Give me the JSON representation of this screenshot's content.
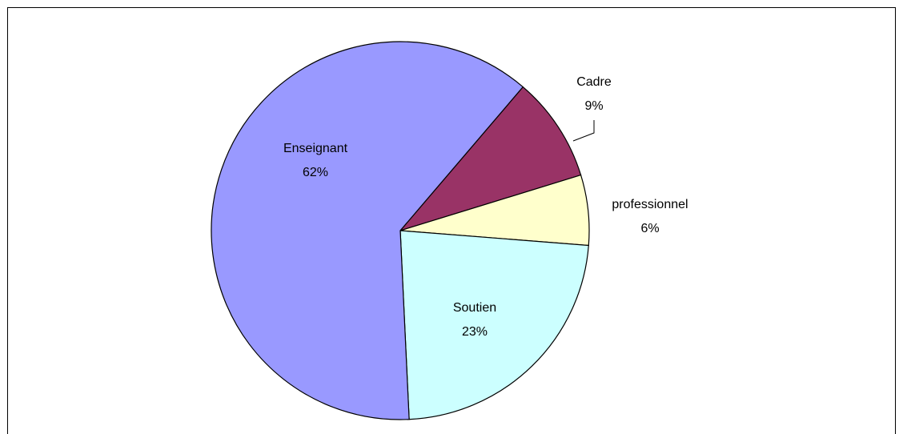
{
  "chart_data": {
    "type": "pie",
    "title": "",
    "start_angle_deg": 0,
    "direction": "clockwise",
    "slices": [
      {
        "label": "Cadre",
        "percent_label": "9%",
        "value": 9,
        "color": "#993366"
      },
      {
        "label": "professionnel",
        "percent_label": "6%",
        "value": 6,
        "color": "#ffffcc"
      },
      {
        "label": "Soutien",
        "percent_label": "23%",
        "value": 23,
        "color": "#ccffff"
      },
      {
        "label": "Enseignant",
        "percent_label": "62%",
        "value": 62,
        "color": "#9999ff"
      }
    ],
    "edge_color": "#000000",
    "legend": "none"
  }
}
